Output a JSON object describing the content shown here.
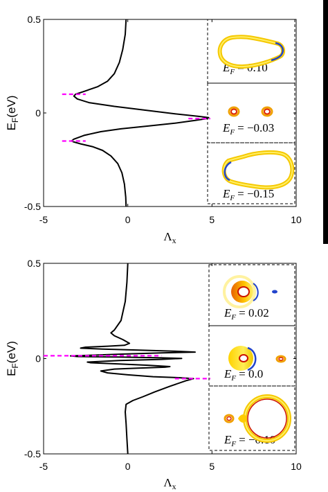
{
  "chart_data": [
    {
      "type": "line",
      "xlabel": "Λx",
      "ylabel": "EF(eV)",
      "xlim": [
        -5,
        10
      ],
      "ylim": [
        -0.5,
        0.5
      ],
      "xticks": [
        "-5",
        "0",
        "5",
        "10"
      ],
      "yticks": [
        "0.5",
        "0",
        "-0.5"
      ],
      "series": [
        {
          "color": "#000000",
          "points": [
            [
              -0.1,
              -0.5
            ],
            [
              -0.12,
              -0.45
            ],
            [
              -0.2,
              -0.38
            ],
            [
              -0.35,
              -0.32
            ],
            [
              -0.6,
              -0.27
            ],
            [
              -1.0,
              -0.23
            ],
            [
              -1.5,
              -0.2
            ],
            [
              -2.1,
              -0.18
            ],
            [
              -2.8,
              -0.165
            ],
            [
              -3.2,
              -0.155
            ],
            [
              -3.35,
              -0.15
            ],
            [
              -3.2,
              -0.14
            ],
            [
              -2.6,
              -0.12
            ],
            [
              -1.6,
              -0.1
            ],
            [
              -0.4,
              -0.085
            ],
            [
              1.2,
              -0.07
            ],
            [
              2.8,
              -0.055
            ],
            [
              4.0,
              -0.04
            ],
            [
              4.7,
              -0.03
            ],
            [
              4.8,
              -0.025
            ],
            [
              4.2,
              -0.018
            ],
            [
              2.8,
              -0.005
            ],
            [
              1.0,
              0.015
            ],
            [
              -0.8,
              0.035
            ],
            [
              -2.3,
              0.055
            ],
            [
              -3.0,
              0.075
            ],
            [
              -3.2,
              0.09
            ],
            [
              -3.1,
              0.1
            ],
            [
              -2.6,
              0.115
            ],
            [
              -1.8,
              0.14
            ],
            [
              -1.2,
              0.17
            ],
            [
              -0.8,
              0.21
            ],
            [
              -0.5,
              0.27
            ],
            [
              -0.3,
              0.34
            ],
            [
              -0.15,
              0.42
            ],
            [
              -0.1,
              0.5
            ]
          ]
        },
        {
          "color": "#ff00ff",
          "dashed": true,
          "segments": [
            [
              [
                -3.9,
                0.1
              ],
              [
                -2.5,
                0.1
              ]
            ],
            [
              [
                3.6,
                -0.03
              ],
              [
                4.9,
                -0.03
              ]
            ],
            [
              [
                -3.9,
                -0.15
              ],
              [
                -2.5,
                -0.15
              ]
            ]
          ]
        }
      ],
      "insets": [
        {
          "label": "E_F = 0.10",
          "math": "E",
          "sub": "F",
          "value": "= 0.10"
        },
        {
          "label": "E_F = −0.03",
          "math": "E",
          "sub": "F",
          "value": "= −0.03"
        },
        {
          "label": "E_F = −0.15",
          "math": "E",
          "sub": "F",
          "value": "= −0.15"
        }
      ]
    },
    {
      "type": "line",
      "xlabel": "Λx",
      "ylabel": "EF(eV)",
      "xlim": [
        -5,
        10
      ],
      "ylim": [
        -0.5,
        0.5
      ],
      "xticks": [
        "-5",
        "0",
        "5",
        "10"
      ],
      "yticks": [
        "0.5",
        "0",
        "-0.5"
      ],
      "series": [
        {
          "color": "#000000",
          "points": [
            [
              0.0,
              -0.5
            ],
            [
              -0.05,
              -0.42
            ],
            [
              -0.1,
              -0.34
            ],
            [
              -0.15,
              -0.28
            ],
            [
              -0.1,
              -0.24
            ],
            [
              0.3,
              -0.22
            ],
            [
              0.9,
              -0.2
            ],
            [
              1.6,
              -0.175
            ],
            [
              2.5,
              -0.145
            ],
            [
              3.5,
              -0.115
            ],
            [
              3.9,
              -0.105
            ],
            [
              3.0,
              -0.1
            ],
            [
              1.5,
              -0.095
            ],
            [
              0.0,
              -0.085
            ],
            [
              -1.2,
              -0.075
            ],
            [
              -1.6,
              -0.065
            ],
            [
              -0.8,
              -0.055
            ],
            [
              0.6,
              -0.05
            ],
            [
              2.2,
              -0.045
            ],
            [
              2.5,
              -0.042
            ],
            [
              1.2,
              -0.035
            ],
            [
              -0.5,
              -0.028
            ],
            [
              -2.2,
              -0.022
            ],
            [
              -2.4,
              -0.018
            ],
            [
              -0.5,
              -0.01
            ],
            [
              2.0,
              -0.004
            ],
            [
              3.2,
              0.001
            ],
            [
              2.0,
              0.004
            ],
            [
              -0.5,
              0.008
            ],
            [
              -3.0,
              0.011
            ],
            [
              -3.4,
              0.014
            ],
            [
              -2.0,
              0.018
            ],
            [
              -0.2,
              0.024
            ],
            [
              2.0,
              0.03
            ],
            [
              4.0,
              0.034
            ],
            [
              3.0,
              0.038
            ],
            [
              0.5,
              0.045
            ],
            [
              -1.5,
              0.05
            ],
            [
              -2.8,
              0.055
            ],
            [
              -2.5,
              0.06
            ],
            [
              -1.2,
              0.065
            ],
            [
              -0.2,
              0.07
            ],
            [
              0.1,
              0.08
            ],
            [
              -0.3,
              0.1
            ],
            [
              -0.8,
              0.12
            ],
            [
              -1.0,
              0.135
            ],
            [
              -0.8,
              0.15
            ],
            [
              -0.4,
              0.2
            ],
            [
              -0.15,
              0.3
            ],
            [
              -0.05,
              0.4
            ],
            [
              0.0,
              0.5
            ]
          ]
        },
        {
          "color": "#ff00ff",
          "dashed": true,
          "segments": [
            [
              [
                -5.0,
                0.015
              ],
              [
                2.0,
                0.015
              ]
            ],
            [
              [
                2.8,
                -0.105
              ],
              [
                4.9,
                -0.105
              ]
            ]
          ]
        }
      ],
      "insets": [
        {
          "label": "E_F = 0.02",
          "math": "E",
          "sub": "F",
          "value": "= 0.02"
        },
        {
          "label": "E_F = 0.0",
          "math": "E",
          "sub": "F",
          "value": "= 0.0"
        },
        {
          "label": "E_F = −0.10",
          "math": "E",
          "sub": "F",
          "value": "= −0.10"
        }
      ]
    }
  ]
}
